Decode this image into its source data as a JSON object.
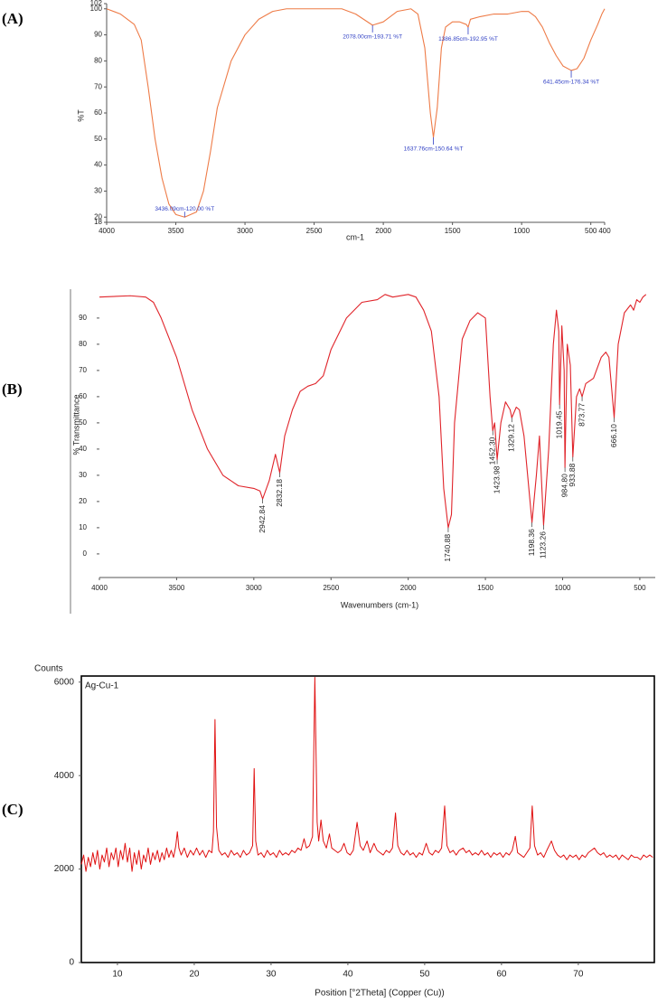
{
  "chart_data": [
    {
      "type": "line",
      "panel_label": "(A)",
      "xlabel": "cm-1",
      "ylabel": "%T",
      "color": "#ee7b47",
      "annotation_color": "#2f3fc4",
      "x": [
        4000,
        3900,
        3800,
        3750,
        3700,
        3650,
        3600,
        3550,
        3500,
        3436.09,
        3350,
        3300,
        3250,
        3200,
        3100,
        3000,
        2900,
        2800,
        2700,
        2500,
        2300,
        2200,
        2100,
        2078,
        2000,
        1900,
        1800,
        1750,
        1700,
        1660,
        1637.76,
        1610,
        1580,
        1550,
        1500,
        1450,
        1400,
        1386.85,
        1370,
        1300,
        1200,
        1100,
        1000,
        950,
        900,
        850,
        800,
        750,
        700,
        641.45,
        600,
        550,
        500,
        450,
        420,
        400
      ],
      "values": [
        100,
        98,
        94,
        88,
        70,
        50,
        35,
        25,
        21,
        20,
        22,
        30,
        45,
        62,
        80,
        90,
        96,
        99,
        100,
        100,
        100,
        98,
        94.5,
        93.71,
        95,
        99,
        100,
        98,
        85,
        60,
        50.64,
        62,
        85,
        93,
        95,
        95,
        94,
        92.95,
        96,
        97,
        98,
        98,
        99,
        99,
        97,
        93,
        87,
        82,
        78,
        76.34,
        77,
        81,
        88,
        94,
        98,
        100
      ],
      "annotations": [
        {
          "text": "3436.09cm-120.00 %T",
          "x": 3436.09,
          "y": 20
        },
        {
          "text": "2078.00cm-193.71 %T",
          "x": 2078,
          "y": 93.71
        },
        {
          "text": "1637.76cm-150.64 %T",
          "x": 1637.76,
          "y": 50.64
        },
        {
          "text": "1386.85cm-192.95 %T",
          "x": 1386.85,
          "y": 92.95
        },
        {
          "text": "641.45cm-176.34 %T",
          "x": 641.45,
          "y": 76.34
        }
      ],
      "xlim": [
        4000,
        400
      ],
      "xticks": [
        4000,
        3500,
        3000,
        2500,
        2000,
        1500,
        1000,
        500,
        400
      ],
      "ylim": [
        18,
        102
      ],
      "yticks": [
        18,
        20,
        30,
        40,
        50,
        60,
        70,
        80,
        90,
        100,
        102
      ]
    },
    {
      "type": "line",
      "panel_label": "(B)",
      "xlabel": "Wavenumbers (cm-1)",
      "ylabel": "% Transmittance",
      "color": "#e0242a",
      "x": [
        4000,
        3800,
        3700,
        3650,
        3600,
        3500,
        3400,
        3300,
        3200,
        3100,
        3000,
        2960,
        2942.84,
        2900,
        2860,
        2832.18,
        2800,
        2750,
        2700,
        2650,
        2600,
        2550,
        2500,
        2400,
        2300,
        2200,
        2150,
        2100,
        2000,
        1950,
        1900,
        1850,
        1800,
        1770,
        1740.88,
        1720,
        1700,
        1650,
        1600,
        1550,
        1500,
        1470,
        1452.3,
        1440,
        1423.98,
        1400,
        1370,
        1340,
        1329.12,
        1300,
        1280,
        1250,
        1198.36,
        1170,
        1150,
        1123.26,
        1090,
        1060,
        1040,
        1025,
        1019.45,
        1005,
        990,
        984.8,
        970,
        950,
        933.88,
        910,
        890,
        873.77,
        850,
        800,
        750,
        720,
        700,
        666.1,
        640,
        600,
        560,
        540,
        520,
        500,
        480,
        460
      ],
      "values": [
        98,
        98.5,
        98,
        96,
        90,
        75,
        55,
        40,
        30,
        26,
        25,
        24,
        21,
        28,
        38,
        31,
        45,
        55,
        62,
        64,
        65,
        68,
        78,
        90,
        96,
        97,
        99,
        98,
        99,
        98,
        93,
        85,
        60,
        25,
        10,
        15,
        50,
        82,
        89,
        92,
        90,
        60,
        47,
        50,
        36,
        50,
        58,
        55,
        52,
        56,
        55,
        45,
        12,
        30,
        45,
        11,
        40,
        80,
        93,
        85,
        57,
        87,
        70,
        33,
        80,
        72,
        37,
        60,
        63,
        60,
        65,
        67,
        75,
        77,
        75,
        52,
        80,
        92,
        95,
        93,
        97,
        96,
        98,
        99
      ],
      "peaks": [
        2942.84,
        2832.18,
        1740.88,
        1452.3,
        1423.98,
        1329.12,
        1198.36,
        1123.26,
        1019.45,
        984.8,
        933.88,
        873.77,
        666.1
      ],
      "peak_labels": [
        "2942.84",
        "2832.18",
        "1740.88",
        "1452.30",
        "1423.98",
        "1329.12",
        "1198.36",
        "1123.26",
        "1019.45",
        "984.80",
        "933.88",
        "873.77",
        "666.10"
      ],
      "xlim": [
        4000,
        400
      ],
      "xticks": [
        4000,
        3500,
        3000,
        2500,
        2000,
        1500,
        1000,
        500
      ],
      "ylim": [
        -9,
        101
      ],
      "yticks": [
        0,
        10,
        20,
        30,
        40,
        50,
        60,
        70,
        80,
        90
      ]
    },
    {
      "type": "line",
      "panel_label": "(C)",
      "xlabel": "Position [°2Theta] (Copper (Cu))",
      "ylabel": "Counts",
      "color": "#e01010",
      "series_name": "Ag-Cu-1",
      "x": [
        5.3,
        5.6,
        5.9,
        6.2,
        6.5,
        6.8,
        7.1,
        7.4,
        7.7,
        8.0,
        8.3,
        8.6,
        8.9,
        9.2,
        9.5,
        9.8,
        10.1,
        10.4,
        10.7,
        11.0,
        11.3,
        11.6,
        11.9,
        12.2,
        12.5,
        12.8,
        13.1,
        13.4,
        13.7,
        14.0,
        14.3,
        14.6,
        14.9,
        15.2,
        15.5,
        15.8,
        16.1,
        16.4,
        16.7,
        17.0,
        17.3,
        17.6,
        17.8,
        18.0,
        18.3,
        18.7,
        19.1,
        19.5,
        19.9,
        20.3,
        20.7,
        21.1,
        21.5,
        21.9,
        22.3,
        22.5,
        22.7,
        22.9,
        23.2,
        23.6,
        24.0,
        24.4,
        24.8,
        25.2,
        25.6,
        26.0,
        26.4,
        26.8,
        27.2,
        27.6,
        27.8,
        28.0,
        28.3,
        28.7,
        29.1,
        29.5,
        29.9,
        30.3,
        30.7,
        31.1,
        31.5,
        31.9,
        32.3,
        32.7,
        33.1,
        33.5,
        33.9,
        34.3,
        34.6,
        35.0,
        35.4,
        35.7,
        36.0,
        36.2,
        36.5,
        36.8,
        37.2,
        37.6,
        37.9,
        38.3,
        38.7,
        39.1,
        39.5,
        39.9,
        40.3,
        40.7,
        41.2,
        41.6,
        42.0,
        42.5,
        42.9,
        43.4,
        43.8,
        44.2,
        44.6,
        45.0,
        45.4,
        45.8,
        46.2,
        46.5,
        46.9,
        47.3,
        47.7,
        48.1,
        48.5,
        48.9,
        49.3,
        49.7,
        50.2,
        50.6,
        51.0,
        51.4,
        51.8,
        52.2,
        52.6,
        52.9,
        53.3,
        53.7,
        54.1,
        54.5,
        55.0,
        55.4,
        55.8,
        56.2,
        56.6,
        57.0,
        57.4,
        57.8,
        58.2,
        58.6,
        59.0,
        59.4,
        59.8,
        60.2,
        60.6,
        61.0,
        61.4,
        61.8,
        62.1,
        62.5,
        62.9,
        63.3,
        63.7,
        64.0,
        64.3,
        64.7,
        65.1,
        65.5,
        65.9,
        66.5,
        66.9,
        67.3,
        67.7,
        68.1,
        68.5,
        68.9,
        69.3,
        69.7,
        70.1,
        70.5,
        70.9,
        71.3,
        71.7,
        72.1,
        72.5,
        72.9,
        73.3,
        73.7,
        74.1,
        74.5,
        74.9,
        75.3,
        75.7,
        76.1,
        76.5,
        76.9,
        77.3,
        77.7,
        78.1,
        78.5,
        78.9,
        79.3,
        79.7
      ],
      "values": [
        2100,
        2300,
        1950,
        2250,
        2050,
        2350,
        2100,
        2400,
        2000,
        2300,
        2150,
        2450,
        2050,
        2350,
        2200,
        2450,
        2050,
        2400,
        2200,
        2550,
        2150,
        2450,
        1950,
        2350,
        2100,
        2400,
        2000,
        2300,
        2150,
        2450,
        2100,
        2350,
        2200,
        2400,
        2150,
        2350,
        2200,
        2450,
        2250,
        2400,
        2250,
        2500,
        2800,
        2450,
        2300,
        2450,
        2250,
        2400,
        2300,
        2450,
        2300,
        2400,
        2250,
        2400,
        2350,
        2800,
        5200,
        2900,
        2400,
        2300,
        2350,
        2250,
        2400,
        2300,
        2350,
        2250,
        2400,
        2300,
        2350,
        2500,
        4150,
        2600,
        2300,
        2350,
        2250,
        2400,
        2300,
        2350,
        2250,
        2400,
        2300,
        2350,
        2300,
        2400,
        2350,
        2450,
        2400,
        2650,
        2450,
        2500,
        2700,
        6100,
        3000,
        2600,
        3050,
        2600,
        2450,
        2750,
        2450,
        2400,
        2350,
        2400,
        2550,
        2350,
        2300,
        2400,
        3000,
        2500,
        2400,
        2600,
        2350,
        2550,
        2400,
        2350,
        2300,
        2400,
        2350,
        2450,
        3200,
        2500,
        2350,
        2300,
        2400,
        2300,
        2350,
        2250,
        2350,
        2300,
        2550,
        2350,
        2300,
        2400,
        2350,
        2450,
        3350,
        2500,
        2350,
        2400,
        2300,
        2400,
        2450,
        2350,
        2400,
        2300,
        2350,
        2300,
        2400,
        2300,
        2350,
        2250,
        2350,
        2300,
        2350,
        2250,
        2350,
        2300,
        2400,
        2700,
        2350,
        2300,
        2250,
        2350,
        2450,
        3350,
        2500,
        2300,
        2350,
        2250,
        2400,
        2600,
        2400,
        2300,
        2250,
        2300,
        2200,
        2300,
        2250,
        2300,
        2200,
        2300,
        2250,
        2350,
        2400,
        2450,
        2350,
        2300,
        2350,
        2250,
        2300,
        2250,
        2300,
        2200,
        2300,
        2250,
        2200,
        2300,
        2250,
        2250,
        2200,
        2300,
        2250,
        2300,
        2250
      ],
      "xlim": [
        5.3,
        79.9
      ],
      "xticks": [
        10,
        20,
        30,
        40,
        50,
        60,
        70
      ],
      "ylim": [
        0,
        6130
      ],
      "yticks": [
        0,
        2000,
        4000,
        6000
      ]
    }
  ]
}
